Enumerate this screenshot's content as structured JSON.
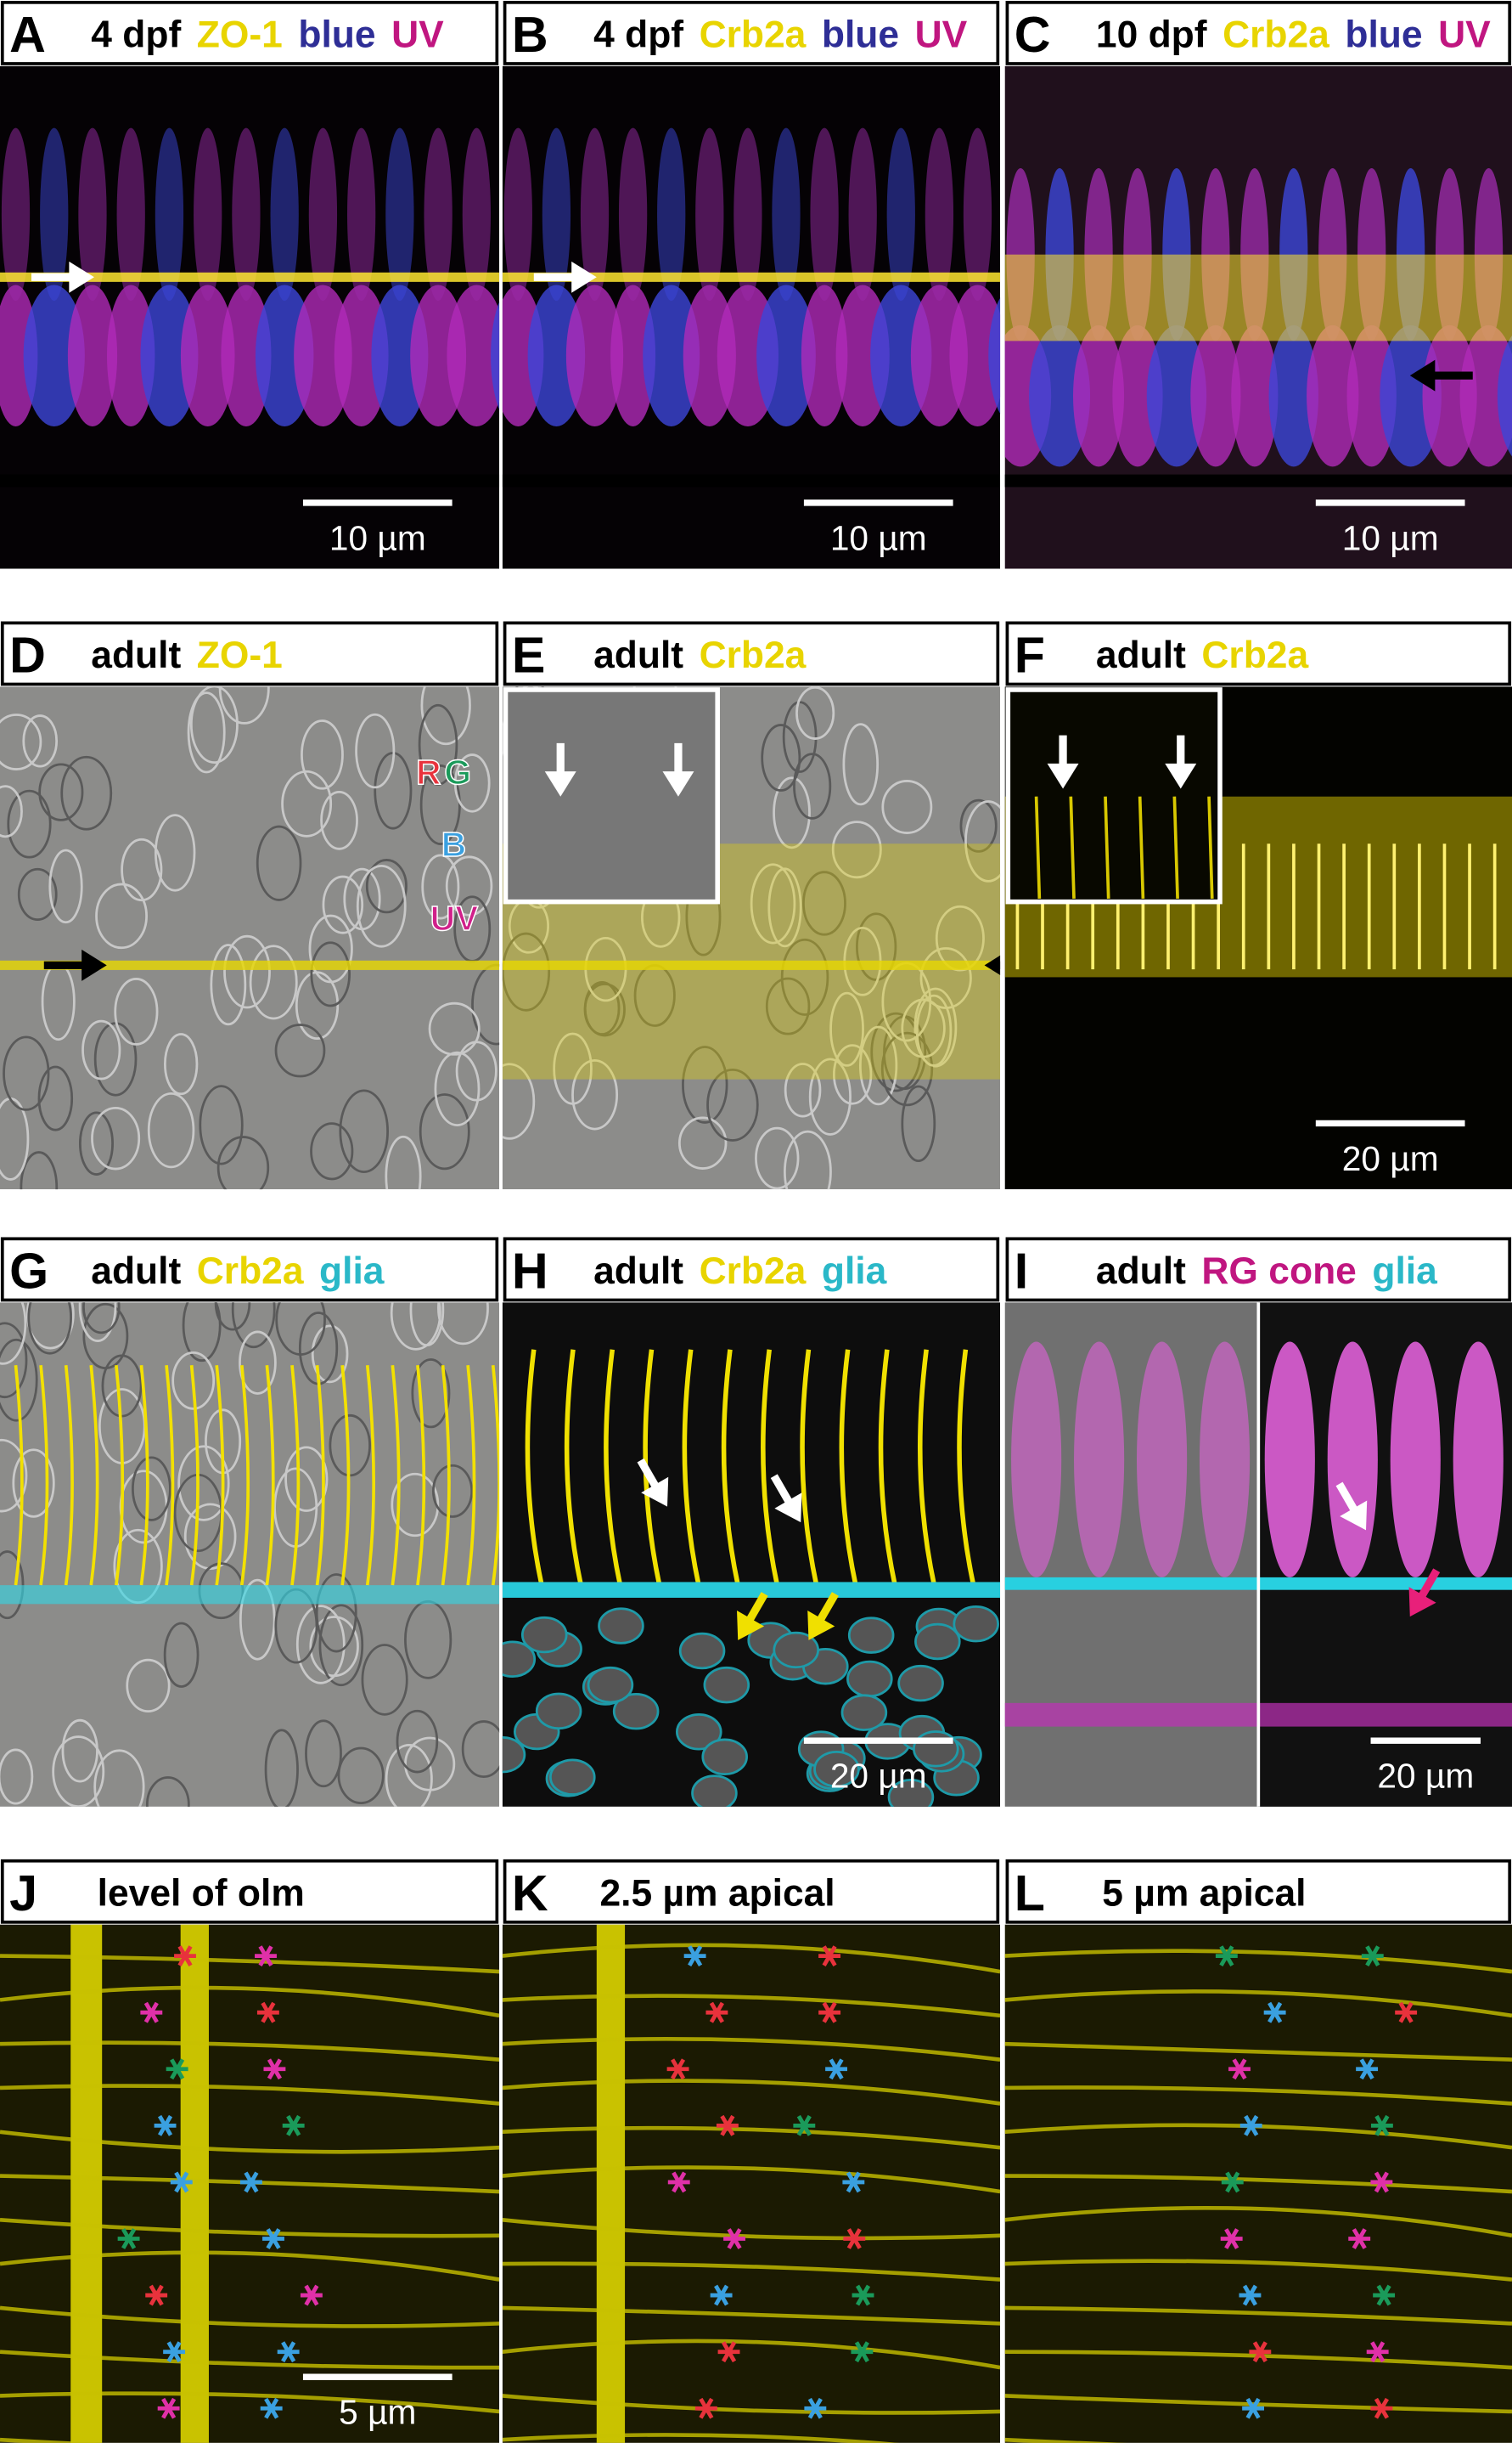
{
  "panels": [
    {
      "letter": "A",
      "title": [
        {
          "text": "4 dpf",
          "color": "#000000"
        },
        {
          "text": "ZO-1",
          "color": "#e8d400"
        },
        {
          "text": "blue",
          "color": "#2e2e96"
        },
        {
          "text": "UV",
          "color": "#c01680"
        }
      ],
      "scale": "10 µm"
    },
    {
      "letter": "B",
      "title": [
        {
          "text": "4 dpf",
          "color": "#000000"
        },
        {
          "text": "Crb2a",
          "color": "#e8d400"
        },
        {
          "text": "blue",
          "color": "#2e2e96"
        },
        {
          "text": "UV",
          "color": "#c01680"
        }
      ],
      "scale": "10 µm"
    },
    {
      "letter": "C",
      "title": [
        {
          "text": "10 dpf",
          "color": "#000000"
        },
        {
          "text": "Crb2a",
          "color": "#e8d400"
        },
        {
          "text": "blue",
          "color": "#2e2e96"
        },
        {
          "text": "UV",
          "color": "#c01680"
        }
      ],
      "scale": "10 µm"
    },
    {
      "letter": "D",
      "title": [
        {
          "text": "adult",
          "color": "#000000"
        },
        {
          "text": "ZO-1",
          "color": "#e8d400"
        }
      ],
      "annotations": [
        {
          "text": "R",
          "color": "#e8323c"
        },
        {
          "text": "G",
          "color": "#1a9a5a"
        },
        {
          "text": "B",
          "color": "#3aa0e0"
        },
        {
          "text": "UV",
          "color": "#d0208a"
        }
      ]
    },
    {
      "letter": "E",
      "title": [
        {
          "text": "adult",
          "color": "#000000"
        },
        {
          "text": "Crb2a",
          "color": "#e8d400"
        }
      ]
    },
    {
      "letter": "F",
      "title": [
        {
          "text": "adult",
          "color": "#000000"
        },
        {
          "text": "Crb2a",
          "color": "#e8d400"
        }
      ],
      "scale": "20 µm"
    },
    {
      "letter": "G",
      "title": [
        {
          "text": "adult",
          "color": "#000000"
        },
        {
          "text": "Crb2a",
          "color": "#e8d400"
        },
        {
          "text": "glia",
          "color": "#2ab8c8"
        }
      ]
    },
    {
      "letter": "H",
      "title": [
        {
          "text": "adult",
          "color": "#000000"
        },
        {
          "text": "Crb2a",
          "color": "#e8d400"
        },
        {
          "text": "glia",
          "color": "#2ab8c8"
        }
      ],
      "scale": "20 µm"
    },
    {
      "letter": "I",
      "title": [
        {
          "text": "adult",
          "color": "#000000"
        },
        {
          "text": "RG cone",
          "color": "#c01680"
        },
        {
          "text": "glia",
          "color": "#2ab8c8"
        }
      ],
      "scale": "20 µm"
    },
    {
      "letter": "J",
      "title": [
        {
          "text": "level of olm",
          "color": "#000000"
        }
      ],
      "scale": "5 µm"
    },
    {
      "letter": "K",
      "title": [
        {
          "text": "2.5 µm apical",
          "color": "#000000"
        }
      ]
    },
    {
      "letter": "L",
      "title": [
        {
          "text": "5 µm apical",
          "color": "#000000"
        }
      ]
    }
  ]
}
